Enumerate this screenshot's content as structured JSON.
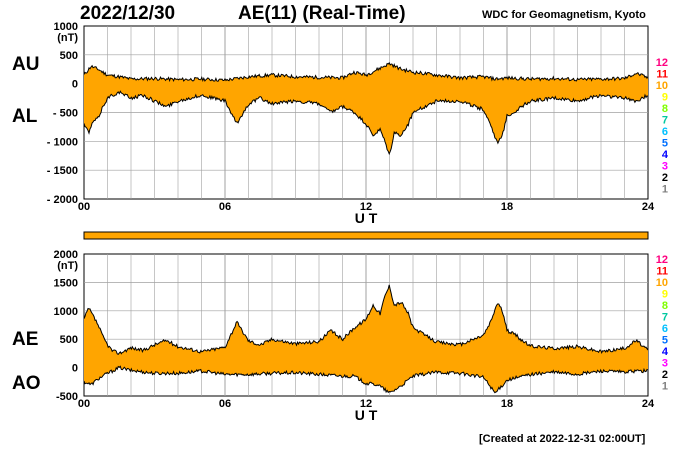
{
  "header": {
    "date": "2022/12/30",
    "title": "AE(11) (Real-Time)",
    "organization": "WDC for Geomagnetism, Kyoto",
    "created": "[Created at 2022-12-31 02:00UT]"
  },
  "colors": {
    "fill": "#ffa500",
    "line": "#000000",
    "grid": "#a0a0a0",
    "stations": [
      "#c0c0c0",
      "#808080",
      "#000000",
      "#ff00ff",
      "#0000ff",
      "#0070ff",
      "#00c0ff",
      "#00c8a0",
      "#80ff00",
      "#ffff00",
      "#ffa500",
      "#ff0000",
      "#ff0080"
    ]
  },
  "chart_data": [
    {
      "type": "area",
      "panel": "AU/AL",
      "series_labels": [
        "AU",
        "AL"
      ],
      "unit": "(nT)",
      "xlabel": "U T",
      "xlim": [
        0,
        24
      ],
      "x_ticks": [
        "00",
        "06",
        "12",
        "18",
        "24"
      ],
      "ylim": [
        -2000,
        1000
      ],
      "y_ticks": [
        "1000",
        "500",
        "0",
        "- 500",
        "- 1000",
        "- 1500",
        "- 2000"
      ],
      "grid": true,
      "station_counts": [
        "12",
        "11",
        "10",
        "9",
        "8",
        "7",
        "6",
        "5",
        "4",
        "3",
        "2",
        "1"
      ],
      "series": [
        {
          "name": "AU",
          "x": [
            0,
            0.3,
            0.6,
            1,
            1.5,
            2,
            3,
            4,
            5,
            6,
            7,
            8,
            9,
            10,
            11,
            11.5,
            12,
            12.5,
            13,
            13.5,
            14,
            15,
            16,
            17,
            17.5,
            18,
            19,
            20,
            21,
            22,
            23,
            23.5,
            24
          ],
          "values": [
            150,
            300,
            250,
            150,
            120,
            80,
            90,
            70,
            80,
            60,
            120,
            150,
            120,
            110,
            100,
            200,
            150,
            250,
            350,
            250,
            200,
            150,
            100,
            120,
            80,
            100,
            80,
            90,
            70,
            80,
            90,
            180,
            100
          ]
        },
        {
          "name": "AL",
          "x": [
            0,
            0.2,
            0.4,
            0.6,
            0.8,
            1,
            1.2,
            1.5,
            2,
            2.5,
            3,
            3.5,
            4,
            5,
            6,
            6.5,
            7,
            7.5,
            8,
            9,
            10,
            10.5,
            11,
            11.5,
            12,
            12.3,
            12.6,
            12.8,
            13,
            13.2,
            13.5,
            13.8,
            14,
            15,
            16,
            17,
            17.3,
            17.6,
            17.8,
            18,
            18.3,
            18.6,
            19,
            20,
            21,
            22,
            23,
            23.5,
            24
          ],
          "values": [
            -700,
            -850,
            -650,
            -600,
            -400,
            -250,
            -200,
            -150,
            -250,
            -200,
            -300,
            -400,
            -300,
            -200,
            -300,
            -700,
            -350,
            -250,
            -350,
            -300,
            -350,
            -500,
            -400,
            -500,
            -700,
            -900,
            -800,
            -1000,
            -1250,
            -850,
            -900,
            -700,
            -500,
            -300,
            -300,
            -450,
            -700,
            -1050,
            -900,
            -550,
            -500,
            -400,
            -300,
            -250,
            -300,
            -200,
            -250,
            -300,
            -200
          ]
        }
      ]
    },
    {
      "type": "area",
      "panel": "AE/AO",
      "series_labels": [
        "AE",
        "AO"
      ],
      "unit": "(nT)",
      "xlabel": "U T",
      "xlim": [
        0,
        24
      ],
      "x_ticks": [
        "00",
        "06",
        "12",
        "18",
        "24"
      ],
      "ylim": [
        -500,
        2000
      ],
      "y_ticks": [
        "2000",
        "1500",
        "1000",
        "500",
        "0",
        "-500"
      ],
      "grid": true,
      "station_counts": [
        "12",
        "11",
        "10",
        "9",
        "8",
        "7",
        "6",
        "5",
        "4",
        "3",
        "2",
        "1"
      ],
      "series": [
        {
          "name": "AE",
          "x": [
            0,
            0.2,
            0.4,
            0.6,
            0.8,
            1,
            1.2,
            1.5,
            2,
            2.5,
            3,
            3.5,
            4,
            5,
            6,
            6.5,
            7,
            7.5,
            8,
            9,
            10,
            10.5,
            11,
            11.5,
            12,
            12.3,
            12.6,
            12.8,
            13,
            13.2,
            13.5,
            13.8,
            14,
            15,
            16,
            17,
            17.3,
            17.6,
            17.8,
            18,
            18.3,
            18.6,
            19,
            20,
            21,
            22,
            23,
            23.5,
            24
          ],
          "values": [
            850,
            1050,
            900,
            750,
            550,
            400,
            300,
            250,
            350,
            300,
            400,
            480,
            370,
            280,
            360,
            800,
            470,
            400,
            500,
            420,
            460,
            650,
            500,
            700,
            850,
            1100,
            950,
            1250,
            1450,
            1100,
            1150,
            950,
            700,
            450,
            400,
            570,
            800,
            1150,
            1000,
            650,
            600,
            490,
            380,
            340,
            370,
            280,
            340,
            480,
            300
          ]
        },
        {
          "name": "AO",
          "x": [
            0,
            0.3,
            0.6,
            1,
            1.5,
            2,
            3,
            4,
            5,
            6,
            7,
            8,
            9,
            10,
            11,
            11.5,
            12,
            12.5,
            13,
            13.5,
            14,
            15,
            16,
            17,
            17.5,
            18,
            19,
            20,
            21,
            22,
            23,
            23.5,
            24
          ],
          "values": [
            -250,
            -300,
            -200,
            -100,
            0,
            -50,
            -100,
            -100,
            -60,
            -120,
            -120,
            -100,
            -90,
            -120,
            -150,
            -150,
            -280,
            -300,
            -450,
            -320,
            -150,
            -80,
            -100,
            -170,
            -450,
            -220,
            -120,
            -80,
            -120,
            -60,
            -80,
            -60,
            -60
          ]
        }
      ]
    }
  ]
}
